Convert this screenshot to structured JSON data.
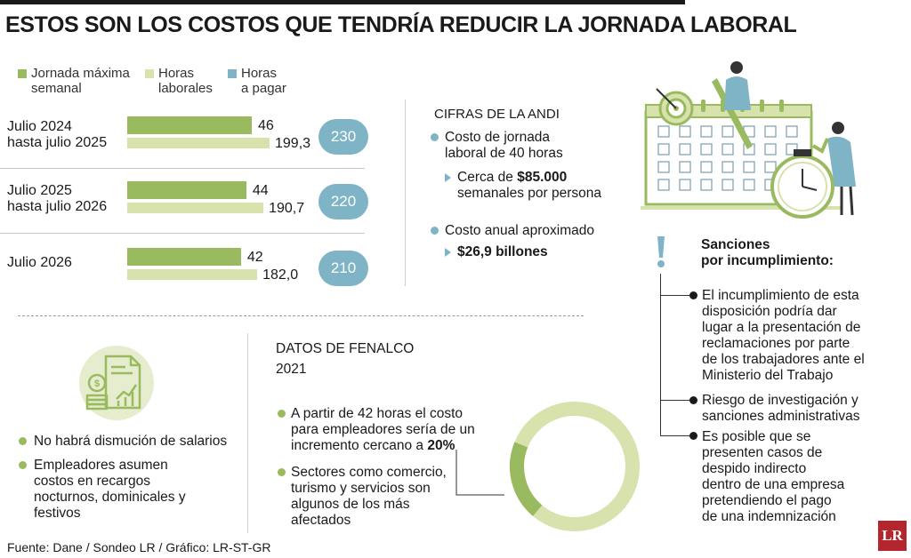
{
  "title": "ESTOS SON LOS COSTOS QUE TENDRÍA REDUCIR LA JORNADA LABORAL",
  "legend": [
    {
      "line1": "Jornada máxima",
      "line2": "semanal",
      "color": "#9aba5f"
    },
    {
      "line1": "Horas",
      "line2": "laborales",
      "color": "#d7e2ad"
    },
    {
      "line1": "Horas",
      "line2": "a pagar",
      "color": "#7fb4c6"
    }
  ],
  "chart_data": {
    "type": "bar",
    "orientation": "horizontal",
    "categories": [
      "Julio 2024 hasta julio 2025",
      "Julio 2025 hasta julio 2026",
      "Julio 2026"
    ],
    "category_lines": [
      [
        "Julio 2024",
        "hasta julio 2025"
      ],
      [
        "Julio 2025",
        "hasta julio 2026"
      ],
      [
        "Julio 2026"
      ]
    ],
    "series": [
      {
        "name": "Jornada máxima semanal",
        "values": [
          46,
          44,
          42
        ],
        "labels": [
          "46",
          "44",
          "42"
        ],
        "color": "#9aba5f"
      },
      {
        "name": "Horas laborales",
        "values": [
          199.3,
          190.7,
          182.0
        ],
        "labels": [
          "199,3",
          "190,7",
          "182,0"
        ],
        "color": "#d7e2ad"
      },
      {
        "name": "Horas a pagar",
        "values": [
          230,
          220,
          210
        ],
        "labels": [
          "230",
          "220",
          "210"
        ],
        "color": "#7fb4c6"
      }
    ]
  },
  "andi": {
    "title": "CIFRAS DE LA ANDI",
    "item1": [
      "Costo de jornada",
      "laboral de 40 horas"
    ],
    "item1_sub_pre": "Cerca de ",
    "item1_sub_bold": "$85.000",
    "item1_sub_line2": "semanales por persona",
    "item2": "Costo anual aproximado",
    "item2_sub": "$26,9 billones"
  },
  "left_bullets": [
    [
      "No habrá dismución de salarios"
    ],
    [
      "Empleadores asumen",
      "costos en recargos",
      "nocturnos, dominicales y",
      "festivos"
    ]
  ],
  "fenalco": {
    "title": "DATOS DE FENALCO",
    "year": "2021",
    "item1": [
      "A partir de 42 horas el costo",
      "para empleadores sería de un"
    ],
    "item1_last_pre": "incremento cercano a ",
    "item1_last_bold": "20%",
    "item2": [
      "Sectores como comercio,",
      "turismo y servicios son",
      "algunos de los más",
      "afectados"
    ],
    "donut_percent": 20
  },
  "sanciones": {
    "title": [
      "Sanciones",
      "por incumplimiento:"
    ],
    "items": [
      [
        "El incumplimiento de esta",
        "disposición podría dar",
        "lugar a la presentación de",
        "reclamaciones por parte",
        "de los trabajadores ante el",
        "Ministerio del Trabajo"
      ],
      [
        "Riesgo de investigación y",
        "sanciones administrativas"
      ],
      [
        "Es posible que se",
        "presenten casos de",
        "despido indirecto",
        "dentro de una empresa",
        "pretendiendo el pago",
        "de una indemnización"
      ]
    ]
  },
  "footer": "Fuente: Dane / Sondeo LR / Gráfico: LR-ST-GR",
  "logo": "LR",
  "colors": {
    "green": "#9aba5f",
    "light_green": "#d7e2ad",
    "blue": "#7fb4c6",
    "logo_red": "#b3262d"
  }
}
